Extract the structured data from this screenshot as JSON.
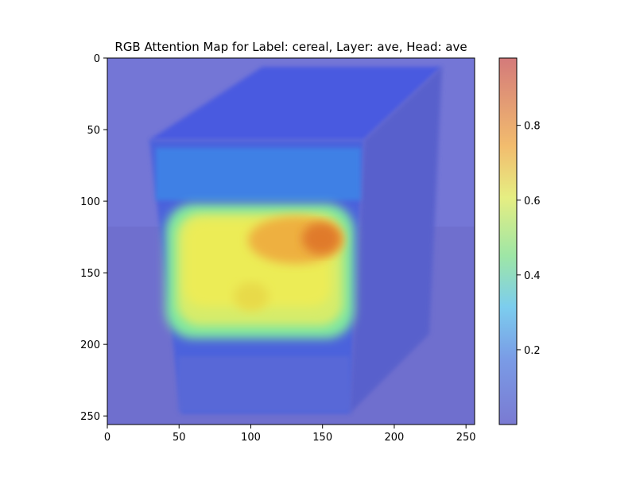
{
  "chart_data": {
    "type": "heatmap",
    "title": "RGB Attention Map for Label: cereal, Layer: ave, Head: ave",
    "xlabel": "",
    "ylabel": "",
    "xlim": [
      0,
      256
    ],
    "ylim": [
      256,
      0
    ],
    "x_ticks": [
      0,
      50,
      100,
      150,
      200,
      250
    ],
    "y_ticks": [
      0,
      50,
      100,
      150,
      200,
      250
    ],
    "colorbar": {
      "range": [
        0.0,
        0.98
      ],
      "ticks": [
        0.2,
        0.4,
        0.6,
        0.8
      ],
      "tick_labels": [
        "0.2",
        "0.4",
        "0.6",
        "0.8"
      ],
      "colormap": "jet",
      "alpha": 0.5
    },
    "hotspots": [
      {
        "x": 88,
        "y": 148,
        "rx": 60,
        "ry": 46,
        "value": 0.58
      },
      {
        "x": 130,
        "y": 133,
        "rx": 30,
        "ry": 20,
        "value": 0.78
      },
      {
        "x": 150,
        "y": 127,
        "rx": 14,
        "ry": 12,
        "value": 0.88
      },
      {
        "x": 100,
        "y": 168,
        "rx": 14,
        "ry": 12,
        "value": 0.66
      },
      {
        "x": 100,
        "y": 84,
        "rx": 78,
        "ry": 20,
        "value": 0.2
      }
    ]
  }
}
